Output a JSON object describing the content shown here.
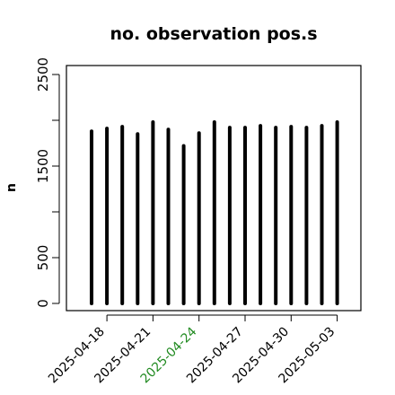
{
  "chart_data": {
    "type": "bar",
    "title": "no. observation pos.s",
    "xlabel": "",
    "ylabel": "n",
    "ylim": [
      0,
      2560
    ],
    "y_ticks": [
      0,
      500,
      1500,
      2500
    ],
    "y_minor_ticks": [
      1000,
      2000
    ],
    "bar_color": "#000000",
    "x": [
      "2025-04-17",
      "2025-04-18",
      "2025-04-19",
      "2025-04-20",
      "2025-04-21",
      "2025-04-22",
      "2025-04-23",
      "2025-04-24",
      "2025-04-25",
      "2025-04-26",
      "2025-04-27",
      "2025-04-28",
      "2025-04-29",
      "2025-04-30",
      "2025-05-01",
      "2025-05-02",
      "2025-05-03"
    ],
    "values": [
      1880,
      1910,
      1930,
      1850,
      1980,
      1900,
      1720,
      1860,
      1980,
      1920,
      1920,
      1940,
      1920,
      1930,
      1920,
      1940,
      1980
    ],
    "x_tick_labels": [
      {
        "label": "2025-04-18",
        "color": "#000000"
      },
      {
        "label": "2025-04-21",
        "color": "#000000"
      },
      {
        "label": "2025-04-24",
        "color": "#228b22"
      },
      {
        "label": "2025-04-27",
        "color": "#000000"
      },
      {
        "label": "2025-04-30",
        "color": "#000000"
      },
      {
        "label": "2025-05-03",
        "color": "#000000"
      }
    ]
  }
}
